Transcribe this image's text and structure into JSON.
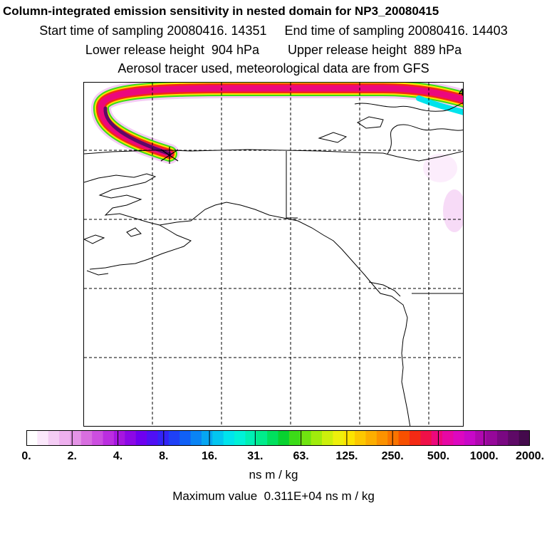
{
  "header": {
    "title": "Column-integrated emission sensitivity in nested domain for NP3_20080415",
    "sampling_line": "Start time of sampling 20080416. 14351     End time of sampling 20080416. 14403",
    "height_line": "Lower release height  904 hPa        Upper release height  889 hPa",
    "tracer_line": "Aerosol tracer used, meteorological data are from GFS"
  },
  "map": {
    "corner_label": "4",
    "release_marker": "x-star"
  },
  "colorbar": {
    "tick_labels": [
      "0.",
      "2.",
      "4.",
      "8.",
      "16.",
      "31.",
      "63.",
      "125.",
      "250.",
      "500.",
      "1000.",
      "2000."
    ],
    "colors": [
      "#ffffff",
      "#fbe8fb",
      "#f4ccf4",
      "#eeb0ee",
      "#e493e6",
      "#d86ee0",
      "#cc4ee0",
      "#bb2ee0",
      "#a616e0",
      "#8c08e6",
      "#6e00f0",
      "#5010f4",
      "#3324f6",
      "#1f40f6",
      "#1060f6",
      "#0a84f4",
      "#06a6f2",
      "#03c6f0",
      "#00e4ec",
      "#00f2d8",
      "#00f0b4",
      "#00ec8c",
      "#00e05e",
      "#08d230",
      "#3cdc18",
      "#70e410",
      "#a0ec0c",
      "#ccf00c",
      "#eef00c",
      "#fde400",
      "#fdc800",
      "#fcae00",
      "#fb9200",
      "#f97400",
      "#f75000",
      "#f42a14",
      "#f01048",
      "#ec087c",
      "#e608a4",
      "#dc08c0",
      "#c808c8",
      "#b008b0",
      "#96089a",
      "#7a0882",
      "#5e0a66",
      "#440a4c"
    ],
    "units": "ns m / kg"
  },
  "footer": {
    "max_value_line": "Maximum value  0.311E+04 ns m / kg"
  }
}
